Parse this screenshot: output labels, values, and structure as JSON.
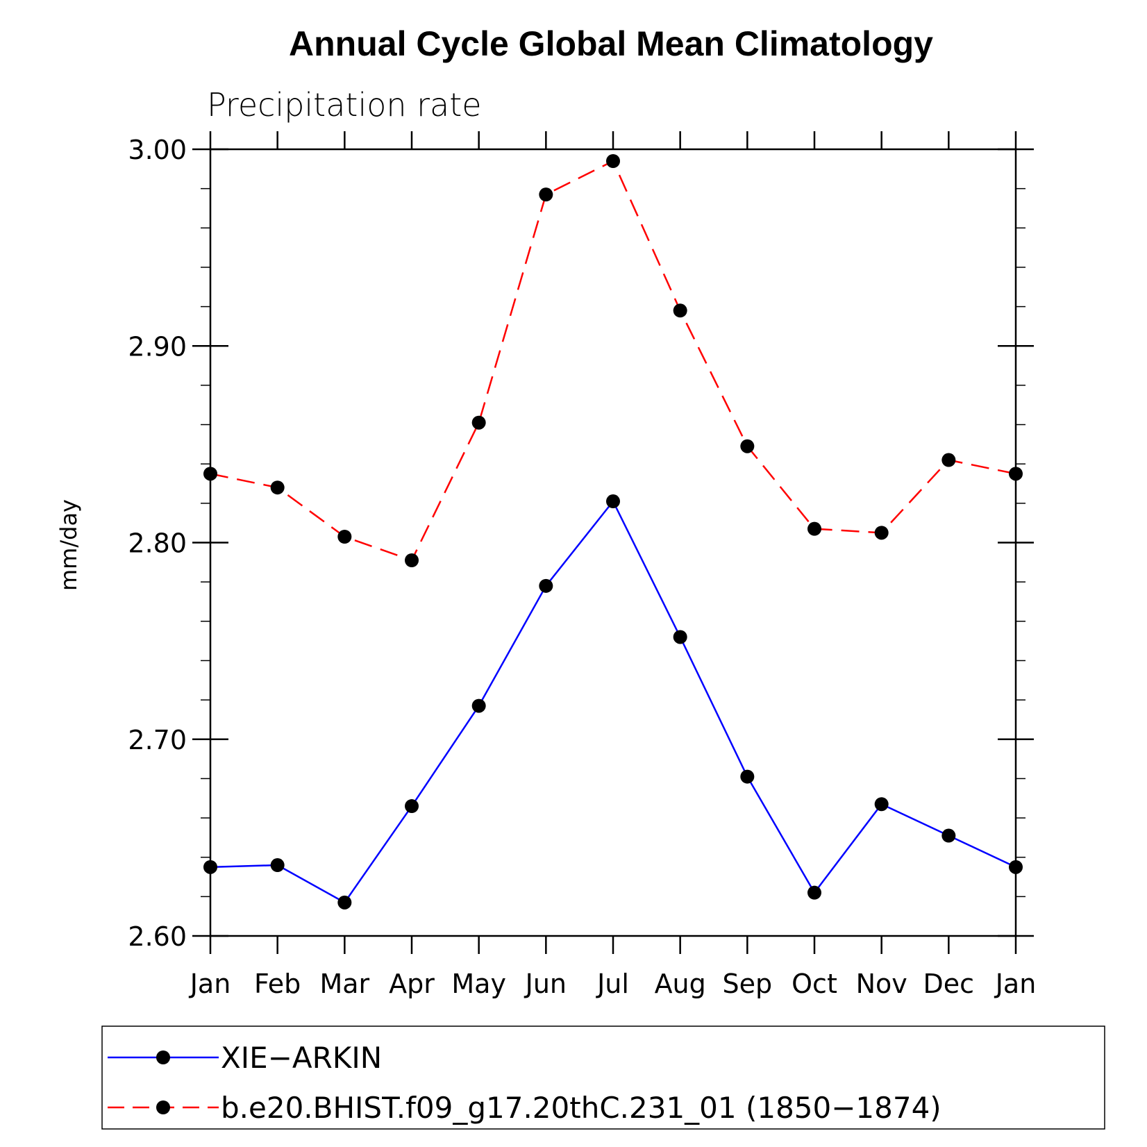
{
  "chart_data": {
    "type": "line",
    "title": "Annual Cycle Global Mean Climatology",
    "subtitle": "Precipitation rate",
    "xlabel": "",
    "ylabel": "mm/day",
    "ylim": [
      2.6,
      3.0
    ],
    "yticks": [
      "2.60",
      "2.70",
      "2.80",
      "2.90",
      "3.00"
    ],
    "categories": [
      "Jan",
      "Feb",
      "Mar",
      "Apr",
      "May",
      "Jun",
      "Jul",
      "Aug",
      "Sep",
      "Oct",
      "Nov",
      "Dec",
      "Jan"
    ],
    "series": [
      {
        "name": "XIE−ARKIN",
        "color": "#0000ff",
        "dash": "solid",
        "values": [
          2.635,
          2.636,
          2.617,
          2.666,
          2.717,
          2.778,
          2.821,
          2.752,
          2.681,
          2.622,
          2.667,
          2.651,
          2.635
        ]
      },
      {
        "name": "b.e20.BHIST.f09_g17.20thC.231_01 (1850−1874)",
        "color": "#ff0000",
        "dash": "dashed",
        "values": [
          2.835,
          2.828,
          2.803,
          2.791,
          2.861,
          2.977,
          2.994,
          2.918,
          2.849,
          2.807,
          2.805,
          2.842,
          2.835
        ]
      }
    ],
    "legend_position": "bottom",
    "grid": false
  }
}
